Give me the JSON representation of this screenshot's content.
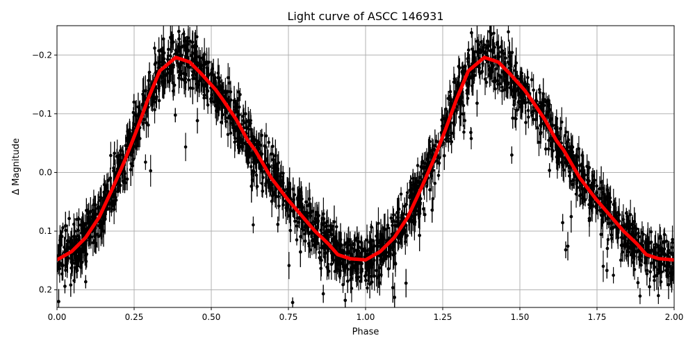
{
  "chart_data": {
    "type": "scatter",
    "title": "Light curve of ASCC 146931",
    "xlabel": "Phase",
    "ylabel": "Δ Magnitude",
    "xlim": [
      0,
      2
    ],
    "ylim": [
      0.23,
      -0.25
    ],
    "y_inverted": true,
    "grid": true,
    "x_ticks": [
      0,
      0.25,
      0.5,
      0.75,
      1.0,
      1.25,
      1.5,
      1.75,
      2.0
    ],
    "x_tick_labels": [
      "0.00",
      "0.25",
      "0.50",
      "0.75",
      "1.00",
      "1.25",
      "1.50",
      "1.75",
      "2.00"
    ],
    "y_ticks": [
      -0.2,
      -0.1,
      0.0,
      0.1,
      0.2
    ],
    "y_tick_labels": [
      "−0.2",
      "−0.1",
      "0.0",
      "0.1",
      "0.2"
    ],
    "series": [
      {
        "kind": "errorbar-points",
        "color": "#000000",
        "description_of_spread": "dense points with error bars scattered around the model curve, roughly ±0.04 mag with outliers",
        "period_repeated": true
      },
      {
        "kind": "line",
        "color": "#ff0000",
        "phase": [
          0,
          0.047,
          0.093,
          0.137,
          0.182,
          0.221,
          0.259,
          0.295,
          0.333,
          0.385,
          0.43,
          0.468,
          0.514,
          0.536,
          0.581,
          0.619,
          0.642,
          0.694,
          0.746,
          0.79,
          0.836,
          0.88,
          0.91,
          0.95,
          1.0
        ],
        "magnitude": [
          0.149,
          0.135,
          0.111,
          0.076,
          0.025,
          -0.022,
          -0.073,
          -0.125,
          -0.173,
          -0.196,
          -0.188,
          -0.168,
          -0.141,
          -0.125,
          -0.09,
          -0.054,
          -0.038,
          0.009,
          0.045,
          0.072,
          0.1,
          0.122,
          0.14,
          0.147,
          0.149
        ],
        "period_repeated": true
      }
    ]
  }
}
